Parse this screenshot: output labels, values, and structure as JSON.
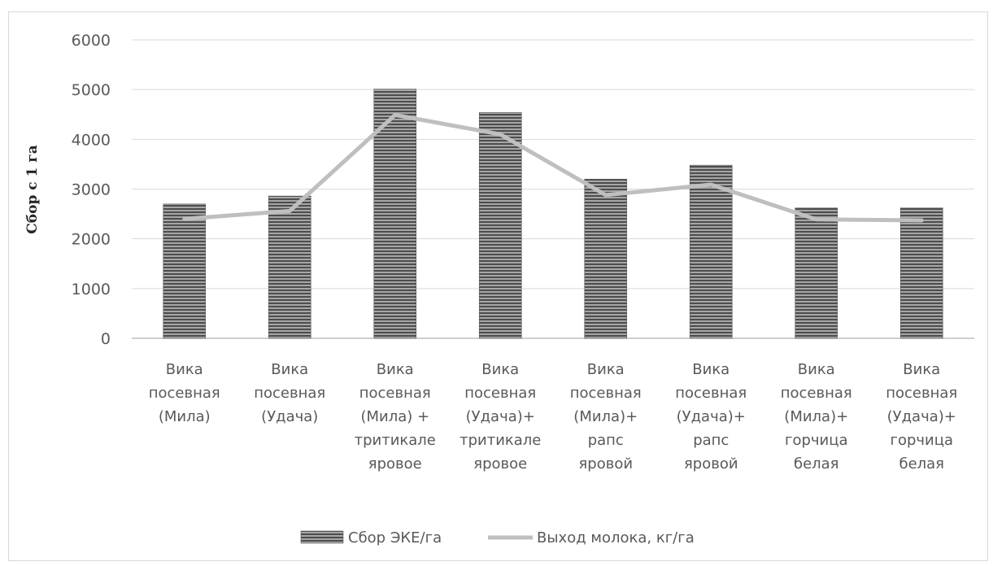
{
  "chart_data": {
    "type": "bar",
    "title": "",
    "xlabel": "",
    "ylabel": "Сбор с 1 га",
    "ylim": [
      0,
      6000
    ],
    "yticks": [
      0,
      1000,
      2000,
      3000,
      4000,
      5000,
      6000
    ],
    "grid": true,
    "legend_position": "bottom",
    "categories": [
      [
        "Вика",
        "посевная",
        "(Мила)"
      ],
      [
        "Вика",
        "посевная",
        "(Удача)"
      ],
      [
        "Вика",
        "посевная",
        "(Мила) +",
        "тритикале",
        "яровое"
      ],
      [
        "Вика",
        "посевная",
        "(Удача)+",
        "тритикале",
        "яровое"
      ],
      [
        "Вика",
        "посевная",
        "(Мила)+",
        "рапс",
        "яровой"
      ],
      [
        "Вика",
        "посевная",
        "(Удача)+",
        "рапс",
        "яровой"
      ],
      [
        "Вика",
        "посевная",
        "(Мила)+",
        "горчица",
        "белая"
      ],
      [
        "Вика",
        "посевная",
        "(Удача)+",
        "горчица",
        "белая"
      ]
    ],
    "series": [
      {
        "name": "Сбор ЭКЕ/га",
        "kind": "bar",
        "color": "#7f7f7f",
        "values": [
          2700,
          2860,
          5010,
          4540,
          3200,
          3480,
          2620,
          2620
        ]
      },
      {
        "name": "Выход молока, кг/га",
        "kind": "line",
        "color": "#bfbfbf",
        "values": [
          2400,
          2560,
          4490,
          4100,
          2880,
          3090,
          2390,
          2370
        ]
      }
    ]
  }
}
